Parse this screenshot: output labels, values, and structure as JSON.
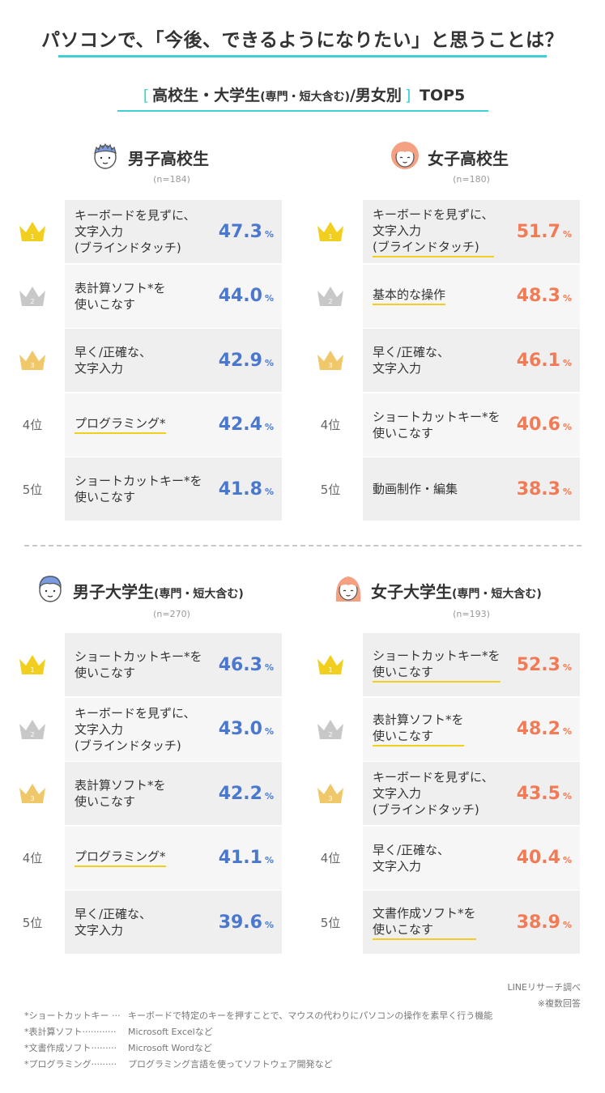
{
  "title": "パソコンで、「今後、できるようになりたい」と思うことは？",
  "subtitle": {
    "open": "[",
    "main": "高校生・大学生",
    "small": "(専門・短大含む)",
    "after": "/男女別",
    "close": "]",
    "top": "TOP5"
  },
  "colors": {
    "accent": "#3fd0d4",
    "male": "#4b78cf",
    "female": "#f27a55",
    "underline": "#f2cf1e",
    "gold": "#f2cf1e",
    "silver": "#c8c8c8",
    "bronze": "#f0c86a"
  },
  "rank_labels": [
    "4位",
    "5位"
  ],
  "percent_symbol": "%",
  "chart_data": [
    {
      "type": "bar",
      "title": "男子高校生",
      "subtitle": "",
      "n": "(n=184)",
      "icon": "boy-student-icon",
      "categories": [
        "キーボードを見ずに、\n文字入力\n(ブラインドタッチ)",
        "表計算ソフト*を\n使いこなす",
        "早く/正確な、\n文字入力",
        "プログラミング*",
        "ショートカットキー*を\n使いこなす"
      ],
      "values": [
        47.3,
        44.0,
        42.9,
        42.4,
        41.8
      ],
      "labels": [
        "47.3",
        "44.0",
        "42.9",
        "42.4",
        "41.8"
      ],
      "underlined": [
        false,
        false,
        false,
        true,
        false
      ]
    },
    {
      "type": "bar",
      "title": "女子高校生",
      "subtitle": "",
      "n": "(n=180)",
      "icon": "girl-student-icon",
      "categories": [
        "キーボードを見ずに、\n文字入力\n(ブラインドタッチ)",
        "基本的な操作",
        "早く/正確な、\n文字入力",
        "ショートカットキー*を\n使いこなす",
        "動画制作・編集"
      ],
      "values": [
        51.7,
        48.3,
        46.1,
        40.6,
        38.3
      ],
      "labels": [
        "51.7",
        "48.3",
        "46.1",
        "40.6",
        "38.3"
      ],
      "underlined": [
        true,
        true,
        false,
        false,
        false
      ]
    },
    {
      "type": "bar",
      "title": "男子大学生",
      "subtitle": "(専門・短大含む)",
      "n": "(n=270)",
      "icon": "male-university-student-icon",
      "categories": [
        "ショートカットキー*を\n使いこなす",
        "キーボードを見ずに、\n文字入力\n(ブラインドタッチ)",
        "表計算ソフト*を\n使いこなす",
        "プログラミング*",
        "早く/正確な、\n文字入力"
      ],
      "values": [
        46.3,
        43.0,
        42.2,
        41.1,
        39.6
      ],
      "labels": [
        "46.3",
        "43.0",
        "42.2",
        "41.1",
        "39.6"
      ],
      "underlined": [
        false,
        false,
        false,
        true,
        false
      ]
    },
    {
      "type": "bar",
      "title": "女子大学生",
      "subtitle": "(専門・短大含む)",
      "n": "(n=193)",
      "icon": "female-university-student-icon",
      "categories": [
        "ショートカットキー*を\n使いこなす",
        "表計算ソフト*を\n使いこなす",
        "キーボードを見ずに、\n文字入力\n(ブラインドタッチ)",
        "早く/正確な、\n文字入力",
        "文書作成ソフト*を\n使いこなす"
      ],
      "values": [
        52.3,
        48.2,
        43.5,
        40.4,
        38.9
      ],
      "labels": [
        "52.3",
        "48.2",
        "43.5",
        "40.4",
        "38.9"
      ],
      "underlined": [
        true,
        true,
        false,
        false,
        true
      ]
    }
  ],
  "source": "LINEリサーチ調べ",
  "note": "※複数回答",
  "footnotes": [
    {
      "key": "*ショートカットキー ···",
      "text": "キーボードで特定のキーを押すことで、マウスの代わりにパソコンの操作を素早く行う機能"
    },
    {
      "key": "*表計算ソフト············",
      "text": "Microsoft Excelなど"
    },
    {
      "key": "*文書作成ソフト·········",
      "text": "Microsoft Wordなど"
    },
    {
      "key": "*プログラミング·········",
      "text": "プログラミング言語を使ってソフトウェア開発など"
    }
  ]
}
